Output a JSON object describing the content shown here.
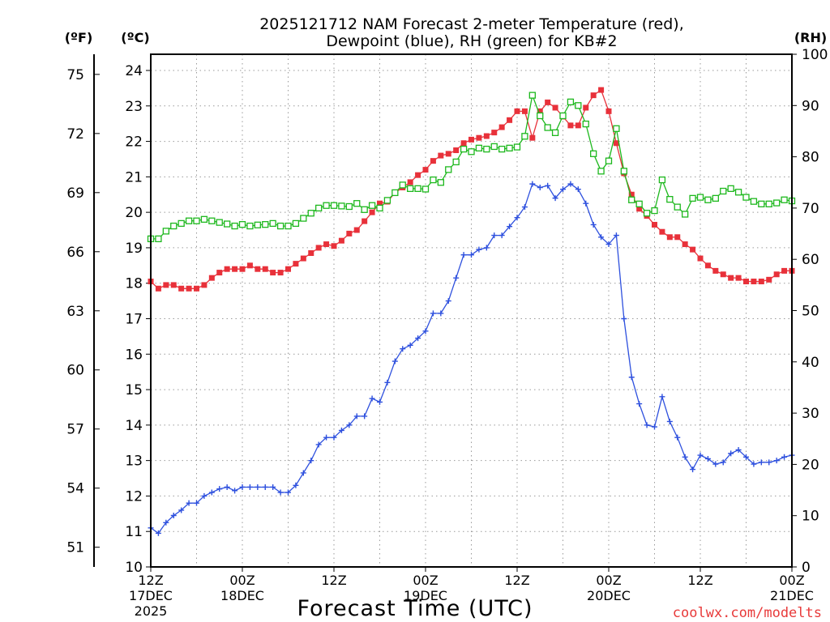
{
  "chart_data": {
    "type": "line",
    "title_line1": "2025121712 NAM Forecast 2-meter Temperature (red),",
    "title_line2": "Dewpoint (blue), RH (green) for KB#2",
    "xlabel": "Forecast Time (UTC)",
    "watermark": "coolwx.com/modelts",
    "left_unit_f": "(ºF)",
    "left_unit_c": "(ºC)",
    "right_unit": "(RH)",
    "ylim_c": [
      10,
      24.5
    ],
    "ylim_rh": [
      0,
      100
    ],
    "xlim_hours": [
      0,
      84
    ],
    "celsius_ticks": [
      10,
      11,
      12,
      13,
      14,
      15,
      16,
      17,
      18,
      19,
      20,
      21,
      22,
      23,
      24
    ],
    "fahrenheit_ticks": [
      51,
      54,
      57,
      60,
      63,
      66,
      69,
      72,
      75
    ],
    "rh_ticks": [
      0,
      10,
      20,
      30,
      40,
      50,
      60,
      70,
      80,
      90,
      100
    ],
    "time_ticks": [
      {
        "hour": 0,
        "line1": "12Z",
        "line2": "17DEC",
        "line3": "2025"
      },
      {
        "hour": 12,
        "line1": "00Z",
        "line2": "18DEC",
        "line3": ""
      },
      {
        "hour": 24,
        "line1": "12Z",
        "line2": "",
        "line3": ""
      },
      {
        "hour": 36,
        "line1": "00Z",
        "line2": "19DEC",
        "line3": ""
      },
      {
        "hour": 48,
        "line1": "12Z",
        "line2": "",
        "line3": ""
      },
      {
        "hour": 60,
        "line1": "00Z",
        "line2": "20DEC",
        "line3": ""
      },
      {
        "hour": 72,
        "line1": "12Z",
        "line2": "",
        "line3": ""
      },
      {
        "hour": 84,
        "line1": "00Z",
        "line2": "21DEC",
        "line3": ""
      }
    ],
    "series": [
      {
        "name": "Temperature (°C)",
        "axis": "celsius",
        "color": "#e8313a",
        "marker": "filled-square",
        "hours": [
          0,
          1,
          2,
          3,
          4,
          5,
          6,
          7,
          8,
          9,
          10,
          11,
          12,
          13,
          14,
          15,
          16,
          17,
          18,
          19,
          20,
          21,
          22,
          23,
          24,
          25,
          26,
          27,
          28,
          29,
          30,
          31,
          32,
          33,
          34,
          35,
          36,
          37,
          38,
          39,
          40,
          41,
          42,
          43,
          44,
          45,
          46,
          47,
          48,
          49,
          50,
          51,
          52,
          53,
          54,
          55,
          56,
          57,
          58,
          59,
          60,
          61,
          62,
          63,
          64,
          65,
          66,
          67,
          68,
          69,
          70,
          71,
          72,
          73,
          74,
          75,
          76,
          77,
          78,
          79,
          80,
          81,
          82,
          83,
          84
        ],
        "values": [
          18.05,
          17.85,
          17.95,
          17.95,
          17.85,
          17.85,
          17.85,
          17.95,
          18.15,
          18.3,
          18.4,
          18.4,
          18.4,
          18.5,
          18.4,
          18.4,
          18.3,
          18.3,
          18.4,
          18.55,
          18.7,
          18.85,
          19.0,
          19.1,
          19.05,
          19.2,
          19.4,
          19.5,
          19.75,
          20.0,
          20.25,
          20.3,
          20.55,
          20.7,
          20.85,
          21.05,
          21.2,
          21.45,
          21.6,
          21.65,
          21.75,
          21.95,
          22.05,
          22.1,
          22.15,
          22.25,
          22.4,
          22.6,
          22.85,
          22.85,
          22.1,
          22.85,
          23.1,
          22.95,
          22.7,
          22.45,
          22.45,
          22.95,
          23.3,
          23.45,
          22.85,
          21.95,
          21.1,
          20.5,
          20.1,
          19.9,
          19.65,
          19.45,
          19.3,
          19.3,
          19.1,
          18.95,
          18.7,
          18.5,
          18.35,
          18.25,
          18.15,
          18.15,
          18.05,
          18.05,
          18.05,
          18.1,
          18.25,
          18.35,
          18.35
        ]
      },
      {
        "name": "Dewpoint (°C)",
        "axis": "celsius",
        "color": "#2e50de",
        "marker": "plus",
        "hours": [
          0,
          1,
          2,
          3,
          4,
          5,
          6,
          7,
          8,
          9,
          10,
          11,
          12,
          13,
          14,
          15,
          16,
          17,
          18,
          19,
          20,
          21,
          22,
          23,
          24,
          25,
          26,
          27,
          28,
          29,
          30,
          31,
          32,
          33,
          34,
          35,
          36,
          37,
          38,
          39,
          40,
          41,
          42,
          43,
          44,
          45,
          46,
          47,
          48,
          49,
          50,
          51,
          52,
          53,
          54,
          55,
          56,
          57,
          58,
          59,
          60,
          61,
          62,
          63,
          64,
          65,
          66,
          67,
          68,
          69,
          70,
          71,
          72,
          73,
          74,
          75,
          76,
          77,
          78,
          79,
          80,
          81,
          82,
          83,
          84
        ],
        "values": [
          11.1,
          10.95,
          11.25,
          11.45,
          11.6,
          11.8,
          11.8,
          12.0,
          12.1,
          12.2,
          12.25,
          12.15,
          12.25,
          12.25,
          12.25,
          12.25,
          12.25,
          12.1,
          12.1,
          12.3,
          12.65,
          13.0,
          13.45,
          13.65,
          13.65,
          13.85,
          14.0,
          14.25,
          14.25,
          14.75,
          14.65,
          15.2,
          15.8,
          16.15,
          16.25,
          16.45,
          16.65,
          17.15,
          17.15,
          17.5,
          18.15,
          18.8,
          18.8,
          18.95,
          19.0,
          19.35,
          19.35,
          19.6,
          19.85,
          20.15,
          20.8,
          20.7,
          20.75,
          20.4,
          20.65,
          20.8,
          20.65,
          20.25,
          19.65,
          19.3,
          19.1,
          19.35,
          17.0,
          15.35,
          14.6,
          14.0,
          13.95,
          14.8,
          14.1,
          13.65,
          13.1,
          12.75,
          13.15,
          13.05,
          12.9,
          12.95,
          13.2,
          13.3,
          13.1,
          12.9,
          12.95,
          12.95,
          13.0,
          13.1,
          13.15
        ]
      },
      {
        "name": "RH (%)",
        "axis": "rh",
        "color": "#1db81d",
        "marker": "open-square",
        "hours": [
          0,
          1,
          2,
          3,
          4,
          5,
          6,
          7,
          8,
          9,
          10,
          11,
          12,
          13,
          14,
          15,
          16,
          17,
          18,
          19,
          20,
          21,
          22,
          23,
          24,
          25,
          26,
          27,
          28,
          29,
          30,
          31,
          32,
          33,
          34,
          35,
          36,
          37,
          38,
          39,
          40,
          41,
          42,
          43,
          44,
          45,
          46,
          47,
          48,
          49,
          50,
          51,
          52,
          53,
          54,
          55,
          56,
          57,
          58,
          59,
          60,
          61,
          62,
          63,
          64,
          65,
          66,
          67,
          68,
          69,
          70,
          71,
          72,
          73,
          74,
          75,
          76,
          77,
          78,
          79,
          80,
          81,
          82,
          83,
          84
        ],
        "values": [
          64,
          64,
          65.5,
          66.5,
          67,
          67.5,
          67.5,
          67.8,
          67.5,
          67.2,
          66.9,
          66.5,
          66.8,
          66.5,
          66.7,
          66.8,
          67,
          66.5,
          66.5,
          67,
          68,
          69,
          70,
          70.5,
          70.5,
          70.4,
          70.3,
          70.9,
          69.7,
          70.5,
          70,
          71.5,
          73,
          74.5,
          73.8,
          73.8,
          73.7,
          75.5,
          75,
          77.5,
          79,
          81.5,
          81,
          81.7,
          81.5,
          82,
          81.5,
          81.7,
          81.9,
          84,
          92,
          88,
          85.7,
          84.7,
          88,
          90.7,
          90,
          86.4,
          80.6,
          77.2,
          79.2,
          85.5,
          77.2,
          71.6,
          70.8,
          69,
          69.5,
          75.5,
          71.7,
          70.2,
          68.8,
          71.9,
          72.1,
          71.6,
          71.9,
          73.3,
          73.8,
          73.1,
          72.1,
          71.3,
          70.8,
          70.8,
          71,
          71.6,
          71.4
        ]
      }
    ]
  }
}
